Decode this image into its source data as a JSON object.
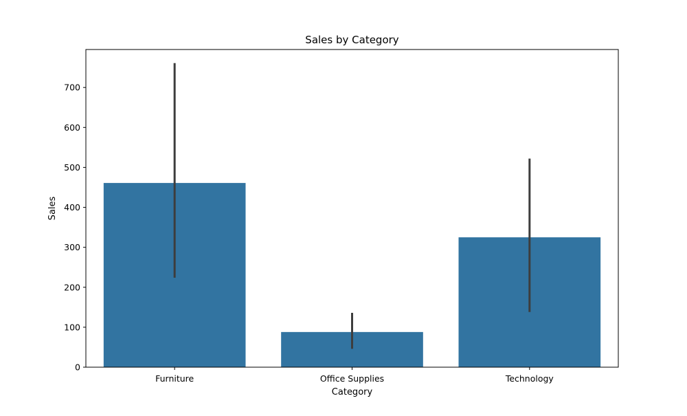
{
  "chart_data": {
    "type": "bar",
    "title": "Sales by Category",
    "xlabel": "Category",
    "ylabel": "Sales",
    "categories": [
      "Furniture",
      "Office Supplies",
      "Technology"
    ],
    "values": [
      461,
      88,
      325
    ],
    "error_low": [
      224,
      46,
      138
    ],
    "error_high": [
      761,
      136,
      522
    ],
    "ylim": [
      0,
      795
    ],
    "yticks": [
      0,
      100,
      200,
      300,
      400,
      500,
      600,
      700
    ],
    "bar_color": "#3274a1",
    "error_color": "#3d3d3d",
    "grid": false
  }
}
